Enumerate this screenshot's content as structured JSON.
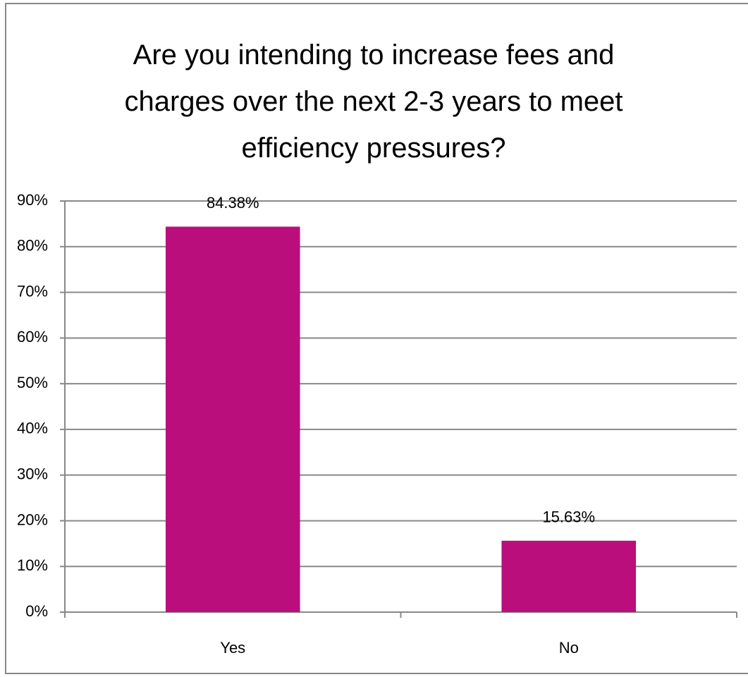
{
  "chart_data": {
    "type": "bar",
    "title": "Are you intending to increase fees and charges over the next 2-3 years to meet efficiency pressures?",
    "categories": [
      "Yes",
      "No"
    ],
    "values": [
      84.38,
      15.63
    ],
    "value_labels": [
      "84.38%",
      "15.63%"
    ],
    "color": "#bb0e7d",
    "ylim": [
      0,
      90
    ],
    "yticks": [
      {
        "value": 0,
        "label": "0%"
      },
      {
        "value": 10,
        "label": "10%"
      },
      {
        "value": 20,
        "label": "20%"
      },
      {
        "value": 30,
        "label": "30%"
      },
      {
        "value": 40,
        "label": "40%"
      },
      {
        "value": 50,
        "label": "50%"
      },
      {
        "value": 60,
        "label": "60%"
      },
      {
        "value": 70,
        "label": "70%"
      },
      {
        "value": 80,
        "label": "80%"
      },
      {
        "value": 90,
        "label": "90%"
      }
    ],
    "grid": true
  }
}
